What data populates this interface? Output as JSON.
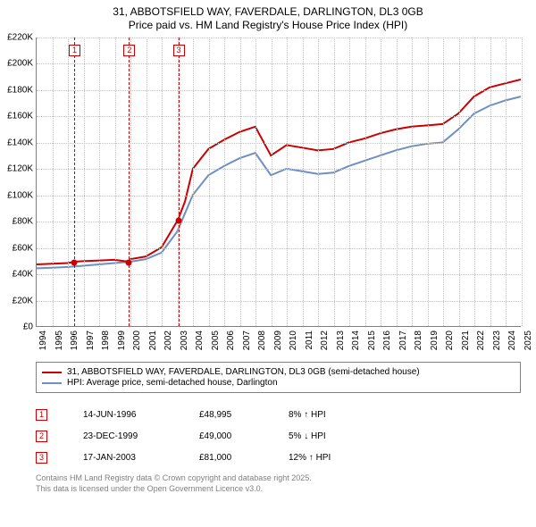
{
  "title": "31, ABBOTSFIELD WAY, FAVERDALE, DARLINGTON, DL3 0GB",
  "subtitle": "Price paid vs. HM Land Registry's House Price Index (HPI)",
  "chart": {
    "type": "line",
    "background_color": "#ffffff",
    "grid_color": "#c0c0c0",
    "axis_color": "#808080",
    "label_fontsize": 10,
    "title_fontsize": 12,
    "ylim": [
      0,
      220000
    ],
    "ytick_step": 20000,
    "ytick_labels": [
      "£0",
      "£20K",
      "£40K",
      "£60K",
      "£80K",
      "£100K",
      "£120K",
      "£140K",
      "£160K",
      "£180K",
      "£200K",
      "£220K"
    ],
    "xlim_year": [
      1994,
      2025
    ],
    "xtick_years": [
      1994,
      1995,
      1996,
      1997,
      1998,
      1999,
      2000,
      2001,
      2002,
      2003,
      2004,
      2005,
      2006,
      2007,
      2008,
      2009,
      2010,
      2011,
      2012,
      2013,
      2014,
      2015,
      2016,
      2017,
      2018,
      2019,
      2020,
      2021,
      2022,
      2023,
      2024,
      2025
    ],
    "series": [
      {
        "name": "31, ABBOTSFIELD WAY, FAVERDALE, DARLINGTON, DL3 0GB (semi-detached house)",
        "color": "#cc0000",
        "line_width": 2,
        "data": [
          [
            1994,
            47000
          ],
          [
            1995,
            47500
          ],
          [
            1996,
            48000
          ],
          [
            1996.4,
            48995
          ],
          [
            1997,
            49500
          ],
          [
            1998,
            50000
          ],
          [
            1999,
            50500
          ],
          [
            1999.9,
            49000
          ],
          [
            2000,
            51000
          ],
          [
            2001,
            53000
          ],
          [
            2002,
            60000
          ],
          [
            2003.05,
            81000
          ],
          [
            2003.5,
            95000
          ],
          [
            2004,
            120000
          ],
          [
            2005,
            135000
          ],
          [
            2006,
            142000
          ],
          [
            2007,
            148000
          ],
          [
            2008,
            152000
          ],
          [
            2009,
            130000
          ],
          [
            2010,
            138000
          ],
          [
            2011,
            136000
          ],
          [
            2012,
            134000
          ],
          [
            2013,
            135000
          ],
          [
            2014,
            140000
          ],
          [
            2015,
            143000
          ],
          [
            2016,
            147000
          ],
          [
            2017,
            150000
          ],
          [
            2018,
            152000
          ],
          [
            2019,
            153000
          ],
          [
            2020,
            154000
          ],
          [
            2021,
            162000
          ],
          [
            2022,
            175000
          ],
          [
            2023,
            182000
          ],
          [
            2024,
            185000
          ],
          [
            2025,
            188000
          ]
        ]
      },
      {
        "name": "HPI: Average price, semi-detached house, Darlington",
        "color": "#6e8fc4",
        "line_width": 2,
        "data": [
          [
            1994,
            44000
          ],
          [
            1995,
            44500
          ],
          [
            1996,
            45000
          ],
          [
            1997,
            46000
          ],
          [
            1998,
            47000
          ],
          [
            1999,
            48000
          ],
          [
            2000,
            49000
          ],
          [
            2001,
            51000
          ],
          [
            2002,
            56000
          ],
          [
            2003,
            72000
          ],
          [
            2004,
            100000
          ],
          [
            2005,
            115000
          ],
          [
            2006,
            122000
          ],
          [
            2007,
            128000
          ],
          [
            2008,
            132000
          ],
          [
            2009,
            115000
          ],
          [
            2010,
            120000
          ],
          [
            2011,
            118000
          ],
          [
            2012,
            116000
          ],
          [
            2013,
            117000
          ],
          [
            2014,
            122000
          ],
          [
            2015,
            126000
          ],
          [
            2016,
            130000
          ],
          [
            2017,
            134000
          ],
          [
            2018,
            137000
          ],
          [
            2019,
            139000
          ],
          [
            2020,
            140000
          ],
          [
            2021,
            150000
          ],
          [
            2022,
            162000
          ],
          [
            2023,
            168000
          ],
          [
            2024,
            172000
          ],
          [
            2025,
            175000
          ]
        ]
      }
    ],
    "sales": [
      {
        "n": "1",
        "year": 1996.4,
        "date": "14-JUN-1996",
        "price": "£48,995",
        "hpi_pct": "8%",
        "hpi_dir": "up",
        "hpi_label": "HPI",
        "yval": 48995
      },
      {
        "n": "2",
        "year": 1999.9,
        "date": "23-DEC-1999",
        "price": "£49,000",
        "hpi_pct": "5%",
        "hpi_dir": "down",
        "hpi_label": "HPI",
        "yval": 49000
      },
      {
        "n": "3",
        "year": 2003.05,
        "date": "17-JAN-2003",
        "price": "£81,000",
        "hpi_pct": "12%",
        "hpi_dir": "up",
        "hpi_label": "HPI",
        "yval": 81000
      }
    ],
    "sale_marker_color": "#cc0000"
  },
  "legend": {
    "border_color": "#808080",
    "fontsize": 10
  },
  "footer": {
    "line1": "Contains HM Land Registry data © Crown copyright and database right 2025.",
    "line2": "This data is licensed under the Open Government Licence v3.0.",
    "color": "#808080",
    "fontsize": 9
  }
}
